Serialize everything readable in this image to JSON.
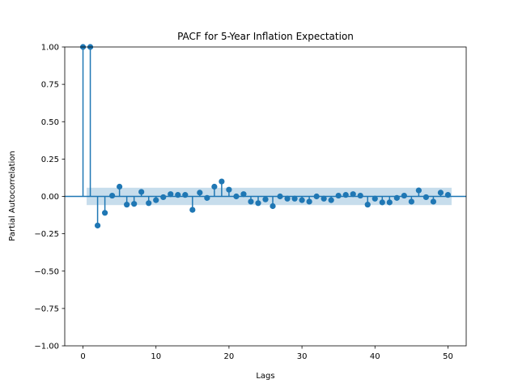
{
  "chart_data": {
    "type": "stem",
    "title": "PACF for 5-Year Inflation Expectation",
    "xlabel": "Lags",
    "ylabel": "Partial Autocorrelation",
    "xlim": [
      -2.5,
      52.5
    ],
    "ylim": [
      -1.0,
      1.0
    ],
    "x_ticks": [
      0,
      10,
      20,
      30,
      40,
      50
    ],
    "x_tick_labels": [
      "0",
      "10",
      "20",
      "30",
      "40",
      "50"
    ],
    "y_ticks": [
      -1.0,
      -0.75,
      -0.5,
      -0.25,
      0.0,
      0.25,
      0.5,
      0.75,
      1.0
    ],
    "y_tick_labels": [
      "−1.00",
      "−0.75",
      "−0.50",
      "−0.25",
      "0.00",
      "0.25",
      "0.50",
      "0.75",
      "1.00"
    ],
    "confidence_band": {
      "from_lag": 0.5,
      "to_lag": 50.5,
      "lower": -0.058,
      "upper": 0.058
    },
    "grid": false,
    "colors": {
      "series": "#1f77b4",
      "band": "#1f77b4",
      "band_opacity": 0.25
    },
    "lags": [
      0,
      1,
      2,
      3,
      4,
      5,
      6,
      7,
      8,
      9,
      10,
      11,
      12,
      13,
      14,
      15,
      16,
      17,
      18,
      19,
      20,
      21,
      22,
      23,
      24,
      25,
      26,
      27,
      28,
      29,
      30,
      31,
      32,
      33,
      34,
      35,
      36,
      37,
      38,
      39,
      40,
      41,
      42,
      43,
      44,
      45,
      46,
      47,
      48,
      49,
      50
    ],
    "values": [
      1.0,
      1.0,
      -0.195,
      -0.11,
      0.005,
      0.065,
      -0.055,
      -0.05,
      0.03,
      -0.045,
      -0.025,
      -0.005,
      0.015,
      0.01,
      0.01,
      -0.09,
      0.025,
      -0.01,
      0.065,
      0.1,
      0.045,
      0.0,
      0.015,
      -0.035,
      -0.045,
      -0.02,
      -0.065,
      0.0,
      -0.015,
      -0.015,
      -0.025,
      -0.035,
      0.0,
      -0.015,
      -0.025,
      0.005,
      0.01,
      0.015,
      0.005,
      -0.055,
      -0.015,
      -0.04,
      -0.04,
      -0.01,
      0.005,
      -0.035,
      0.04,
      -0.005,
      -0.035,
      0.025,
      0.01
    ]
  }
}
